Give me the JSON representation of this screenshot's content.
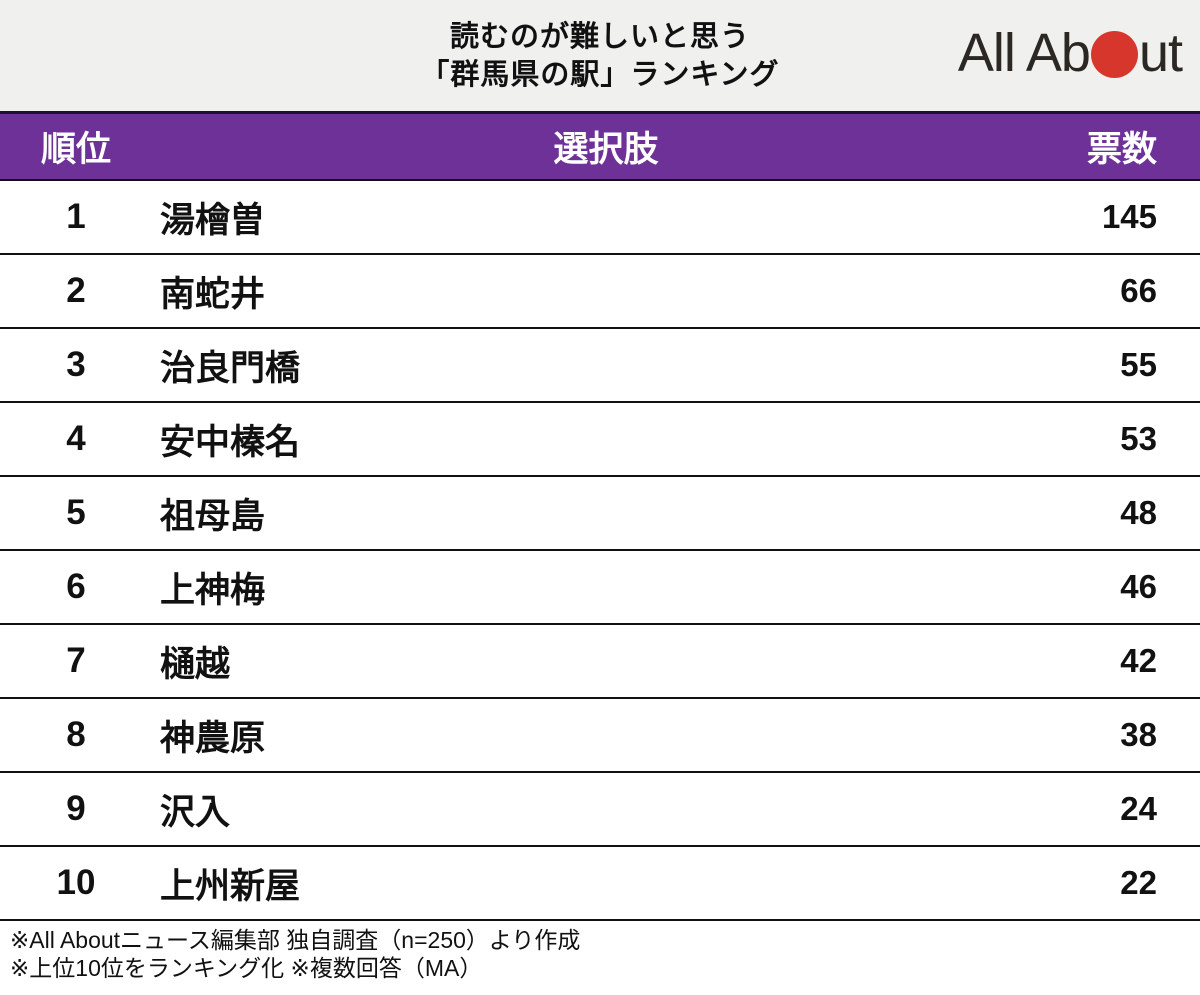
{
  "header": {
    "title_line1": "読むのが難しいと思う",
    "title_line2": "「群馬県の駅」ランキング",
    "logo": {
      "text_left": "All Ab",
      "text_right": "ut",
      "dot_icon": "red-circle",
      "dot_color": "#d7362d"
    }
  },
  "table": {
    "columns": {
      "rank": "順位",
      "choice": "選択肢",
      "votes": "票数"
    },
    "rows": [
      {
        "rank": "1",
        "choice": "湯檜曽",
        "votes": "145"
      },
      {
        "rank": "2",
        "choice": "南蛇井",
        "votes": "66"
      },
      {
        "rank": "3",
        "choice": "治良門橋",
        "votes": "55"
      },
      {
        "rank": "4",
        "choice": "安中榛名",
        "votes": "53"
      },
      {
        "rank": "5",
        "choice": "祖母島",
        "votes": "48"
      },
      {
        "rank": "6",
        "choice": "上神梅",
        "votes": "46"
      },
      {
        "rank": "7",
        "choice": "樋越",
        "votes": "42"
      },
      {
        "rank": "8",
        "choice": "神農原",
        "votes": "38"
      },
      {
        "rank": "9",
        "choice": "沢入",
        "votes": "24"
      },
      {
        "rank": "10",
        "choice": "上州新屋",
        "votes": "22"
      }
    ]
  },
  "footer": {
    "note1": "※All Aboutニュース編集部 独自調査（n=250）より作成",
    "note2": "※上位10位をランキング化 ※複数回答（MA）"
  },
  "colors": {
    "accent_purple": "#6d3198",
    "logo_red": "#d7362d",
    "masthead_bg": "#f0f0ef",
    "separator": "#111111"
  },
  "chart_data": {
    "type": "table",
    "title": "読むのが難しいと思う「群馬県の駅」ランキング",
    "columns": [
      "順位",
      "選択肢",
      "票数"
    ],
    "categories": [
      "湯檜曽",
      "南蛇井",
      "治良門橋",
      "安中榛名",
      "祖母島",
      "上神梅",
      "樋越",
      "神農原",
      "沢入",
      "上州新屋"
    ],
    "values": [
      145,
      66,
      55,
      53,
      48,
      46,
      42,
      38,
      24,
      22
    ],
    "notes": [
      "※All Aboutニュース編集部 独自調査（n=250）より作成",
      "※上位10位をランキング化 ※複数回答（MA）"
    ]
  }
}
